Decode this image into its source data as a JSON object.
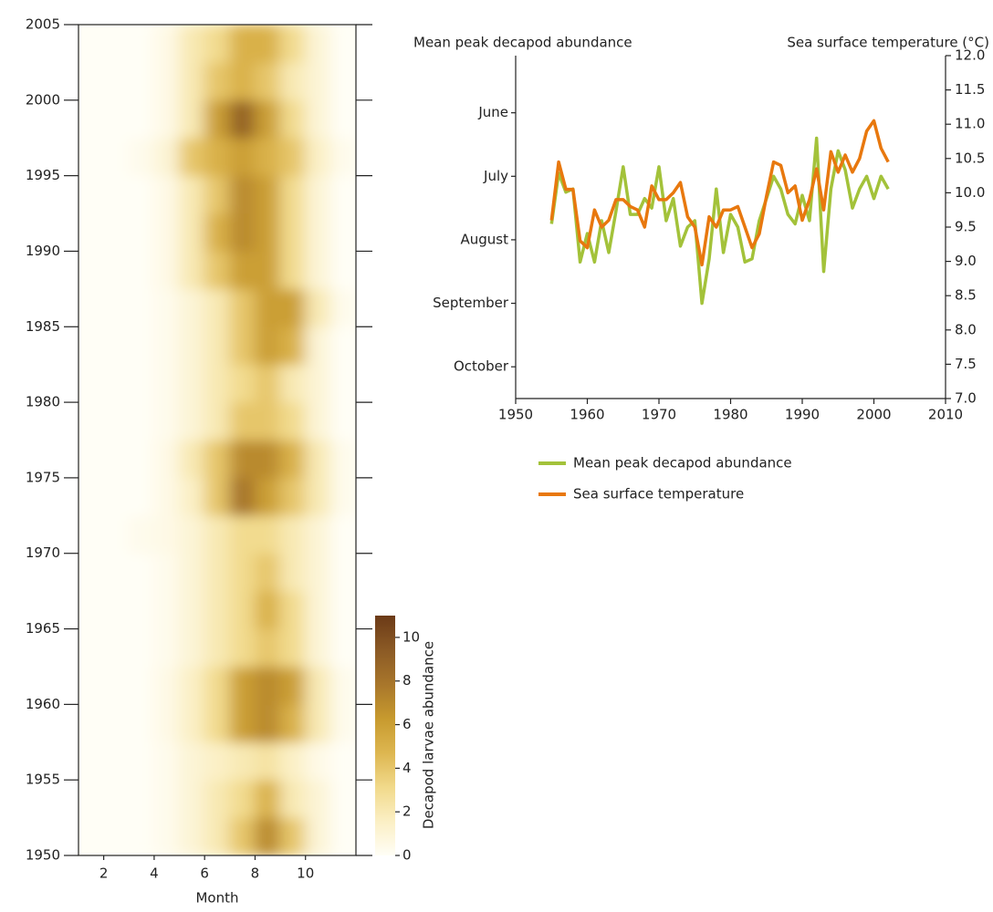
{
  "chart_data": [
    {
      "type": "heatmap",
      "xlabel": "Month",
      "colorbar_label": "Decapod larvae abundance",
      "xlim": [
        1,
        12
      ],
      "xticks": [
        2,
        4,
        6,
        8,
        10
      ],
      "ylim": [
        1950,
        2005
      ],
      "yticks": [
        1950,
        1955,
        1960,
        1965,
        1970,
        1975,
        1980,
        1985,
        1990,
        1995,
        2000,
        2005
      ],
      "x_bins": [
        1,
        2,
        3,
        4,
        5,
        6,
        7,
        8,
        9,
        10,
        11,
        12
      ],
      "y_bins": [
        1950,
        1952.5,
        1955,
        1957.5,
        1960,
        1962.5,
        1965,
        1967.5,
        1970,
        1972.5,
        1975,
        1977.5,
        1980,
        1982.5,
        1985,
        1987.5,
        1990,
        1992.5,
        1995,
        1997.5,
        2000,
        2002.5,
        2005
      ],
      "z": [
        [
          0,
          0,
          0,
          0.3,
          1,
          2,
          4,
          7,
          4,
          1,
          0
        ],
        [
          0,
          0,
          0,
          0.3,
          1,
          2,
          3,
          5,
          2,
          1,
          0
        ],
        [
          0,
          0,
          0,
          0.3,
          1,
          1.5,
          2,
          2.5,
          1.5,
          0.5,
          0
        ],
        [
          0,
          0,
          0,
          0.5,
          1.5,
          3,
          6,
          7,
          5,
          2,
          0.3
        ],
        [
          0,
          0,
          0,
          0.5,
          1.5,
          3,
          6,
          7,
          6,
          2,
          0.3
        ],
        [
          0,
          0,
          0,
          0.3,
          1,
          2,
          3,
          4,
          3,
          1,
          0
        ],
        [
          0,
          0,
          0,
          0.3,
          1,
          2,
          3,
          5,
          3,
          1,
          0
        ],
        [
          0,
          0,
          0,
          0.3,
          1,
          2,
          3,
          4,
          2,
          1,
          0
        ],
        [
          0,
          0,
          0.3,
          0.5,
          1,
          2,
          3,
          3,
          2,
          1,
          0
        ],
        [
          0,
          0,
          0,
          0.5,
          1.5,
          4,
          8,
          6,
          4,
          2,
          0.3
        ],
        [
          0,
          0,
          0,
          0.5,
          2,
          4,
          7,
          7,
          5,
          2,
          0.3
        ],
        [
          0,
          0,
          0,
          0.3,
          1,
          2,
          4,
          4,
          3,
          1,
          0
        ],
        [
          0,
          0,
          0,
          0.3,
          1,
          2,
          3,
          4,
          2,
          1,
          0
        ],
        [
          0,
          0,
          0,
          0.3,
          1,
          2,
          4,
          6,
          5,
          1,
          0
        ],
        [
          0,
          0,
          0,
          0.3,
          1,
          2,
          4,
          6,
          6,
          2,
          0.3
        ],
        [
          0,
          0,
          0,
          0.5,
          2,
          4,
          6,
          6,
          3,
          1,
          0
        ],
        [
          0,
          0,
          0,
          0.5,
          2,
          5,
          7,
          6,
          3,
          1,
          0
        ],
        [
          0,
          0,
          0,
          0.5,
          2,
          4,
          7,
          6,
          3,
          1,
          0
        ],
        [
          0,
          0,
          0.3,
          1,
          4,
          5,
          6,
          5,
          4,
          1.5,
          0.3
        ],
        [
          0,
          0,
          0,
          0.5,
          2,
          6,
          9,
          6,
          3,
          1,
          0
        ],
        [
          0,
          0,
          0,
          0.5,
          2,
          4,
          5,
          4,
          2,
          1,
          0
        ],
        [
          0,
          0,
          0,
          0.5,
          2,
          3,
          5,
          5,
          3,
          1,
          0
        ]
      ],
      "clim": [
        0,
        11
      ],
      "cticks": [
        0,
        2,
        4,
        6,
        8,
        10
      ],
      "colormap": [
        "#fffef6",
        "#fbefc4",
        "#f1d98a",
        "#ddb650",
        "#c79a2e",
        "#a8762b",
        "#8b5a25",
        "#6b3a17"
      ]
    },
    {
      "type": "line",
      "ylabel": "Mean peak decapod abundance",
      "y2label": "Sea surface temperature (°C)",
      "xlim": [
        1950,
        2010
      ],
      "xticks": [
        1950,
        1960,
        1970,
        1980,
        1990,
        2000,
        2010
      ],
      "ylim": [
        10.5,
        5.1
      ],
      "yticks": [
        {
          "value": 6,
          "label": "June"
        },
        {
          "value": 7,
          "label": "July"
        },
        {
          "value": 8,
          "label": "August"
        },
        {
          "value": 9,
          "label": "September"
        },
        {
          "value": 10,
          "label": "October"
        }
      ],
      "y2lim": [
        7,
        12
      ],
      "y2ticks": [
        {
          "value": 7,
          "label": "7.0"
        },
        7.5,
        {
          "value": 8,
          "label": "8.0"
        },
        8.5,
        {
          "value": 9,
          "label": "9.0"
        },
        9.5,
        {
          "value": 10,
          "label": "10.0"
        },
        10.5,
        {
          "value": 11,
          "label": "11.0"
        },
        11.5,
        {
          "value": 12,
          "label": "12.0"
        }
      ],
      "x": [
        1955,
        1956,
        1957,
        1958,
        1959,
        1960,
        1961,
        1962,
        1963,
        1964,
        1965,
        1966,
        1967,
        1968,
        1969,
        1970,
        1971,
        1972,
        1973,
        1974,
        1975,
        1976,
        1977,
        1978,
        1979,
        1980,
        1981,
        1982,
        1983,
        1984,
        1985,
        1986,
        1987,
        1988,
        1989,
        1990,
        1991,
        1992,
        1993,
        1994,
        1995,
        1996,
        1997,
        1998,
        1999,
        2000,
        2001,
        2002
      ],
      "legend": "below",
      "series": [
        {
          "name": "Mean peak decapod abundance",
          "color": "#a3c23a",
          "axis": "y",
          "values": [
            7.75,
            6.95,
            7.25,
            7.2,
            8.35,
            7.9,
            8.35,
            7.7,
            8.2,
            7.55,
            6.85,
            7.6,
            7.6,
            7.35,
            7.5,
            6.85,
            7.7,
            7.35,
            8.1,
            7.8,
            7.7,
            9.0,
            8.3,
            7.2,
            8.2,
            7.6,
            7.8,
            8.35,
            8.3,
            7.7,
            7.35,
            7.0,
            7.2,
            7.6,
            7.75,
            7.3,
            7.7,
            6.4,
            8.5,
            7.2,
            6.6,
            6.9,
            7.5,
            7.2,
            7.0,
            7.35,
            7.0,
            7.2
          ]
        },
        {
          "name": "Sea surface temperature",
          "color": "#e8780e",
          "axis": "y2",
          "values": [
            9.6,
            10.45,
            10.05,
            10.05,
            9.3,
            9.2,
            9.75,
            9.5,
            9.6,
            9.9,
            9.9,
            9.8,
            9.75,
            9.5,
            10.1,
            9.9,
            9.9,
            10.0,
            10.15,
            9.65,
            9.5,
            8.95,
            9.65,
            9.5,
            9.75,
            9.75,
            9.8,
            9.5,
            9.2,
            9.4,
            9.95,
            10.45,
            10.4,
            10.0,
            10.1,
            9.6,
            9.9,
            10.35,
            9.75,
            10.6,
            10.3,
            10.55,
            10.3,
            10.5,
            10.9,
            11.05,
            10.65,
            10.45
          ]
        }
      ]
    }
  ]
}
